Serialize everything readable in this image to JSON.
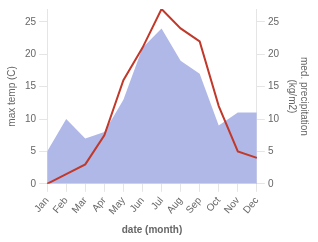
{
  "chart_data": {
    "type": "line",
    "xlabel": "date (month)",
    "ylabel": "max temp (C)",
    "y2label": "med. precipitation\n(kg/m2)",
    "categories": [
      "Jan",
      "Feb",
      "Mar",
      "Apr",
      "May",
      "Jun",
      "Jul",
      "Aug",
      "Sep",
      "Oct",
      "Nov",
      "Dec"
    ],
    "series": [
      {
        "type": "line",
        "color": "#c0392b",
        "values": [
          0,
          1.5,
          3,
          7.5,
          16,
          21,
          27,
          24,
          22,
          12,
          5,
          4
        ]
      },
      {
        "type": "area",
        "color": "#b0b8e8",
        "axis": "y2",
        "values": [
          5,
          10,
          7,
          8,
          13,
          21,
          24,
          19,
          17,
          9,
          11,
          11
        ]
      }
    ],
    "ylim": [
      0,
      27
    ],
    "yticks": [
      0,
      5,
      10,
      15,
      20,
      25
    ],
    "y2lim": [
      0,
      27
    ],
    "y2ticks": [
      0,
      5,
      10,
      15,
      20,
      25
    ],
    "grid": false
  }
}
